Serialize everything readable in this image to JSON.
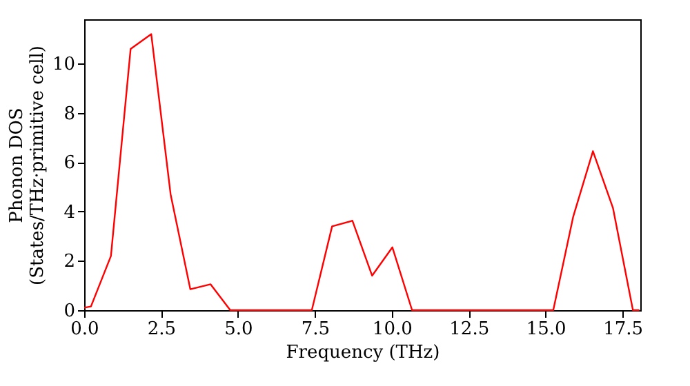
{
  "chart_data": {
    "type": "line",
    "xlabel": "Frequency (THz)",
    "ylabel": "Phonon DOS\n(States/THz·primitive cell)",
    "x": [
      0.0,
      0.22,
      0.87,
      1.51,
      2.18,
      2.81,
      3.45,
      4.11,
      4.75,
      5.4,
      6.1,
      6.75,
      7.4,
      8.06,
      8.72,
      9.36,
      10.02,
      10.66,
      11.3,
      12.0,
      12.6,
      13.3,
      13.9,
      14.6,
      15.25,
      15.9,
      16.54,
      17.19,
      17.84,
      18.05
    ],
    "series": [
      {
        "color": "#ff0000",
        "values": [
          0.1,
          0.15,
          2.2,
          10.6,
          11.2,
          4.7,
          0.85,
          1.05,
          0,
          0,
          0,
          0,
          0,
          3.4,
          3.63,
          1.4,
          2.55,
          0,
          0,
          0,
          0,
          0,
          0,
          0,
          0,
          3.8,
          6.45,
          4.15,
          0,
          0
        ]
      }
    ],
    "xlim": [
      0,
      18.08
    ],
    "ylim": [
      0,
      11.8
    ],
    "xticks": [
      {
        "value": 0,
        "label": "0.0"
      },
      {
        "value": 2.5,
        "label": "2.5"
      },
      {
        "value": 5,
        "label": "5.0"
      },
      {
        "value": 7.5,
        "label": "7.5"
      },
      {
        "value": 10,
        "label": "10.0"
      },
      {
        "value": 12.5,
        "label": "12.5"
      },
      {
        "value": 15,
        "label": "15.0"
      },
      {
        "value": 17.5,
        "label": "17.5"
      }
    ],
    "yticks": [
      0,
      2,
      4,
      6,
      8,
      10
    ],
    "grid": false,
    "marker": "none",
    "line_style": "solid"
  }
}
